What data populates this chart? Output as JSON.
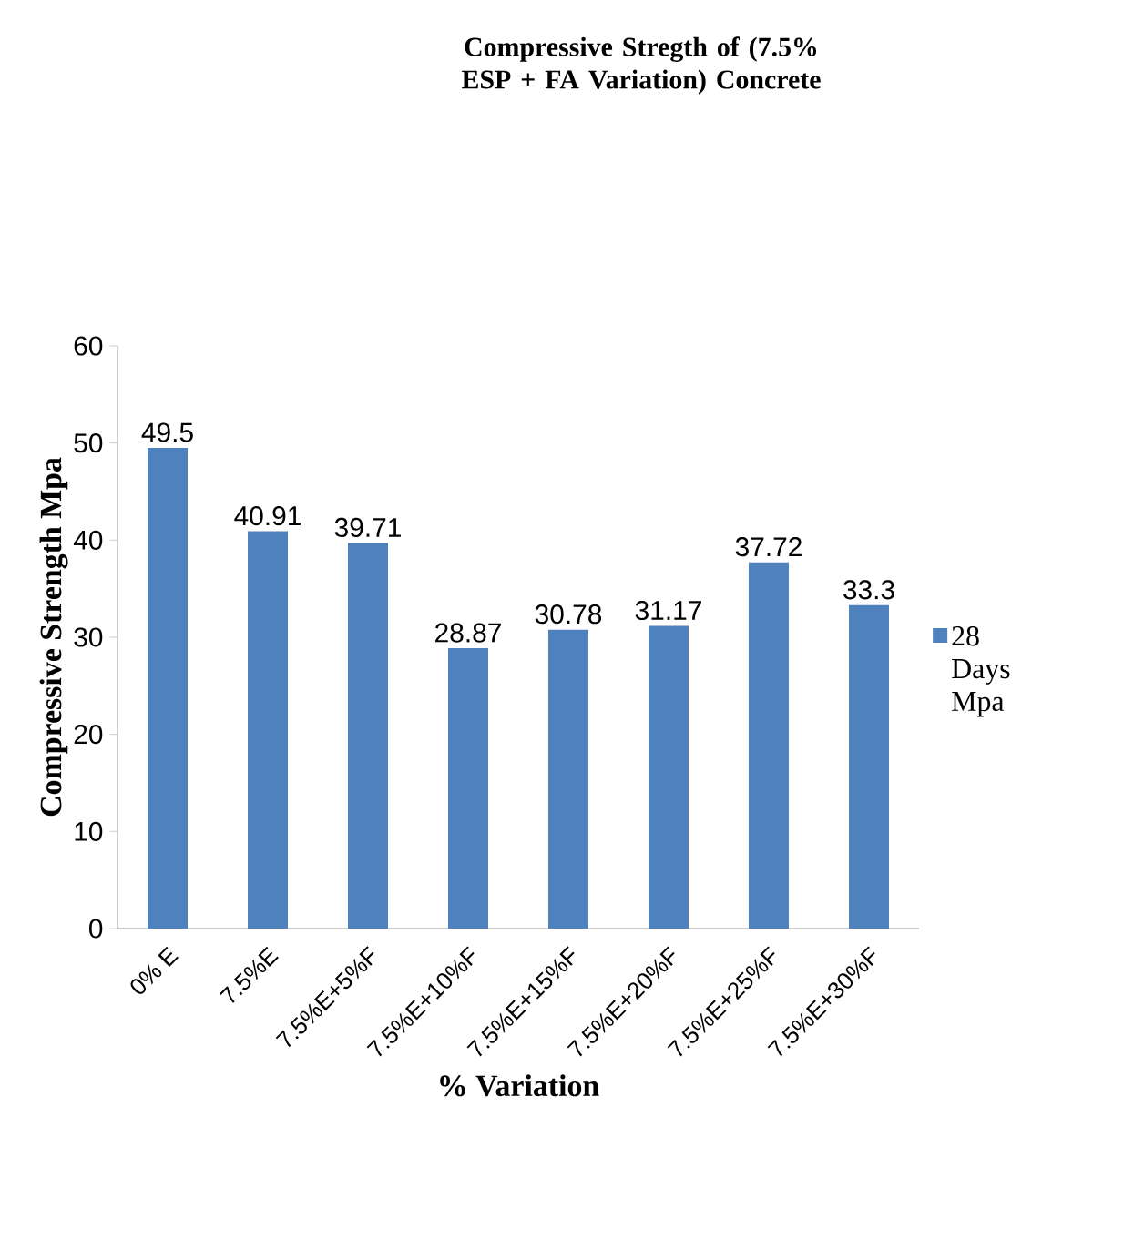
{
  "chart_data": {
    "type": "bar",
    "title": "Compressive Stregth of (7.5% ESP + FA Variation) Concrete",
    "xlabel": "% Variation",
    "ylabel": "Compressive Strength Mpa",
    "categories": [
      "0% E",
      "7.5%E",
      "7.5%E+5%F",
      "7.5%E+10%F",
      "7.5%E+15%F",
      "7.5%E+20%F",
      "7.5%E+25%F",
      "7.5%E+30%F"
    ],
    "series": [
      {
        "name": "28 Days Mpa",
        "color": "#4f81bd",
        "values": [
          49.5,
          40.91,
          39.71,
          28.87,
          30.78,
          31.17,
          37.72,
          33.3
        ]
      }
    ],
    "ylim": [
      0,
      60
    ],
    "yticks": [
      0,
      10,
      20,
      30,
      40,
      50,
      60
    ],
    "data_labels": true,
    "legend": "right",
    "grid": false
  }
}
